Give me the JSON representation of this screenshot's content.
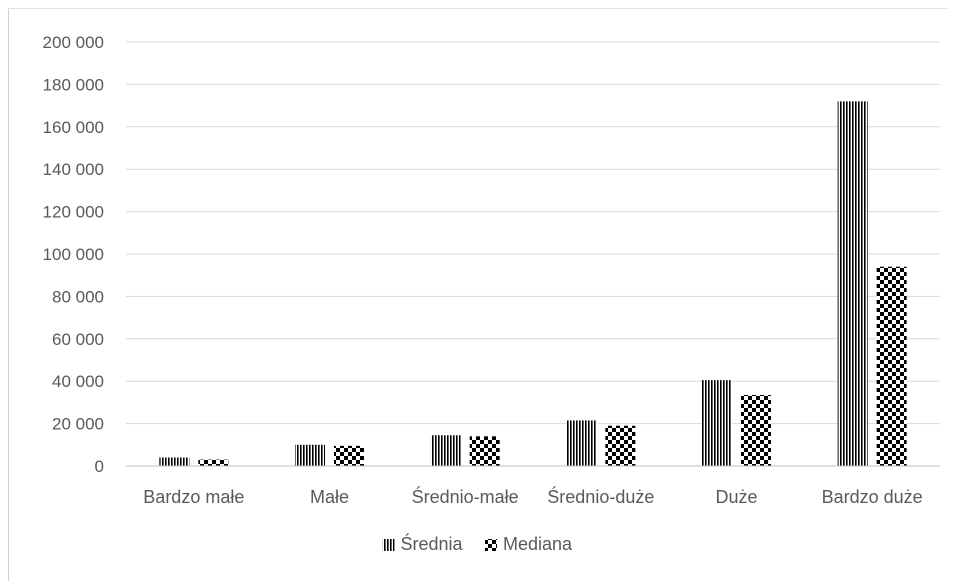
{
  "chart_data": {
    "type": "bar",
    "categories": [
      "Bardzo małe",
      "Małe",
      "Średnio-małe",
      "Średnio-duże",
      "Duże",
      "Bardzo duże"
    ],
    "series": [
      {
        "name": "Średnia",
        "pattern": "vertical-stripes",
        "values": [
          4000,
          10000,
          14500,
          21500,
          40500,
          172000
        ]
      },
      {
        "name": "Mediana",
        "pattern": "checkerboard",
        "values": [
          3000,
          9500,
          14000,
          19000,
          33500,
          94000
        ]
      }
    ],
    "yTickLabels": [
      "0",
      "20 000",
      "40 000",
      "60 000",
      "80 000",
      "100 000",
      "120 000",
      "140 000",
      "160 000",
      "180 000",
      "200 000"
    ],
    "yTicks": [
      0,
      20000,
      40000,
      60000,
      80000,
      100000,
      120000,
      140000,
      160000,
      180000,
      200000
    ],
    "ylim": [
      0,
      200000
    ],
    "grid": true,
    "legend_position": "bottom",
    "colors": {
      "bar": "#000000",
      "gridline": "#d9d9d9",
      "text": "#595959",
      "axis": "#bfbfbf"
    }
  }
}
